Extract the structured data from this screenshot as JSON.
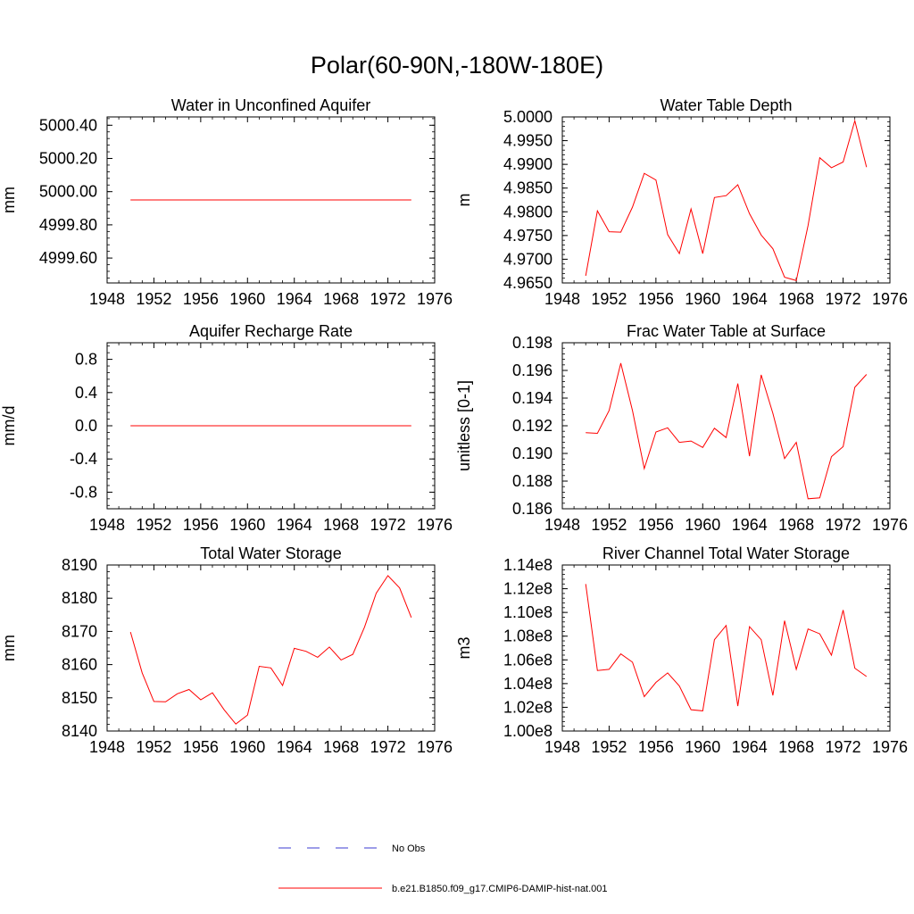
{
  "figure_title": "Polar(60-90N,-180W-180E)",
  "legend": {
    "entries": [
      {
        "label": "No Obs",
        "style": "dashed",
        "color": "#3b3bd1"
      },
      {
        "label": "b.e21.B1850.f09_g17.CMIP6-DAMIP-hist-nat.001",
        "style": "solid",
        "color": "#ff0000"
      }
    ]
  },
  "line_color": "#ff0000",
  "chart_data": [
    {
      "type": "line",
      "title": "Water in Unconfined Aquifer",
      "ylabel": "mm",
      "xlim": [
        1948,
        1976
      ],
      "ylim": [
        4999.45,
        5000.45
      ],
      "xticks": [
        1948,
        1952,
        1956,
        1960,
        1964,
        1968,
        1972,
        1976
      ],
      "xtick_labels": [
        "1948",
        "1952",
        "1956",
        "1960",
        "1964",
        "1968",
        "1972",
        "1976"
      ],
      "yticks": [
        4999.6,
        4999.8,
        5000.0,
        5000.2,
        5000.4
      ],
      "ytick_labels": [
        "4999.60",
        "4999.80",
        "5000.00",
        "5000.20",
        "5000.40"
      ],
      "x": [
        1950,
        1951,
        1952,
        1953,
        1954,
        1955,
        1956,
        1957,
        1958,
        1959,
        1960,
        1961,
        1962,
        1963,
        1964,
        1965,
        1966,
        1967,
        1968,
        1969,
        1970,
        1971,
        1972,
        1973,
        1974
      ],
      "y": [
        4999.95,
        4999.95,
        4999.95,
        4999.95,
        4999.95,
        4999.95,
        4999.95,
        4999.95,
        4999.95,
        4999.95,
        4999.95,
        4999.95,
        4999.95,
        4999.95,
        4999.95,
        4999.95,
        4999.95,
        4999.95,
        4999.95,
        4999.95,
        4999.95,
        4999.95,
        4999.95,
        4999.95,
        4999.95
      ]
    },
    {
      "type": "line",
      "title": "Water Table Depth",
      "ylabel": "m",
      "xlim": [
        1948,
        1976
      ],
      "ylim": [
        4.965,
        5.0
      ],
      "xticks": [
        1948,
        1952,
        1956,
        1960,
        1964,
        1968,
        1972,
        1976
      ],
      "xtick_labels": [
        "1948",
        "1952",
        "1956",
        "1960",
        "1964",
        "1968",
        "1972",
        "1976"
      ],
      "yticks": [
        4.965,
        4.97,
        4.975,
        4.98,
        4.985,
        4.99,
        4.995,
        5.0
      ],
      "ytick_labels": [
        "4.9650",
        "4.9700",
        "4.9750",
        "4.9800",
        "4.9850",
        "4.9900",
        "4.9950",
        "5.0000"
      ],
      "x": [
        1950,
        1951,
        1952,
        1953,
        1954,
        1955,
        1956,
        1957,
        1958,
        1959,
        1960,
        1961,
        1962,
        1963,
        1964,
        1965,
        1966,
        1967,
        1968,
        1969,
        1970,
        1971,
        1972,
        1973,
        1974
      ],
      "y": [
        4.9665,
        4.9802,
        4.9758,
        4.9757,
        4.981,
        4.9881,
        4.9867,
        4.9752,
        4.9712,
        4.9806,
        4.9712,
        4.983,
        4.9834,
        4.9857,
        4.9796,
        4.9751,
        4.9722,
        4.9662,
        4.9655,
        4.9771,
        4.9914,
        4.9893,
        4.9905,
        4.9992,
        4.9894
      ]
    },
    {
      "type": "line",
      "title": "Aquifer Recharge Rate",
      "ylabel": "mm/d",
      "xlim": [
        1948,
        1976
      ],
      "ylim": [
        -1.0,
        1.0
      ],
      "xticks": [
        1948,
        1952,
        1956,
        1960,
        1964,
        1968,
        1972,
        1976
      ],
      "xtick_labels": [
        "1948",
        "1952",
        "1956",
        "1960",
        "1964",
        "1968",
        "1972",
        "1976"
      ],
      "yticks": [
        -0.8,
        -0.4,
        0.0,
        0.4,
        0.8
      ],
      "ytick_labels": [
        "-0.8",
        "-0.4",
        "0.0",
        "0.4",
        "0.8"
      ],
      "x": [
        1950,
        1951,
        1952,
        1953,
        1954,
        1955,
        1956,
        1957,
        1958,
        1959,
        1960,
        1961,
        1962,
        1963,
        1964,
        1965,
        1966,
        1967,
        1968,
        1969,
        1970,
        1971,
        1972,
        1973,
        1974
      ],
      "y": [
        0,
        0,
        0,
        0,
        0,
        0,
        0,
        0,
        0,
        0,
        0,
        0,
        0,
        0,
        0,
        0,
        0,
        0,
        0,
        0,
        0,
        0,
        0,
        0,
        0
      ]
    },
    {
      "type": "line",
      "title": "Frac Water Table at Surface",
      "ylabel": "unitless [0-1]",
      "xlim": [
        1948,
        1976
      ],
      "ylim": [
        0.186,
        0.198
      ],
      "xticks": [
        1948,
        1952,
        1956,
        1960,
        1964,
        1968,
        1972,
        1976
      ],
      "xtick_labels": [
        "1948",
        "1952",
        "1956",
        "1960",
        "1964",
        "1968",
        "1972",
        "1976"
      ],
      "yticks": [
        0.186,
        0.188,
        0.19,
        0.192,
        0.194,
        0.196,
        0.198
      ],
      "ytick_labels": [
        "0.186",
        "0.188",
        "0.190",
        "0.192",
        "0.194",
        "0.196",
        "0.198"
      ],
      "x": [
        1950,
        1951,
        1952,
        1953,
        1954,
        1955,
        1956,
        1957,
        1958,
        1959,
        1960,
        1961,
        1962,
        1963,
        1964,
        1965,
        1966,
        1967,
        1968,
        1969,
        1970,
        1971,
        1972,
        1973,
        1974
      ],
      "y": [
        0.1915,
        0.19145,
        0.1931,
        0.19652,
        0.1931,
        0.1889,
        0.19155,
        0.19185,
        0.1908,
        0.1909,
        0.19043,
        0.19182,
        0.19115,
        0.19505,
        0.1898,
        0.19568,
        0.1929,
        0.18963,
        0.1908,
        0.18672,
        0.18679,
        0.18977,
        0.19049,
        0.19478,
        0.19571
      ]
    },
    {
      "type": "line",
      "title": "Total Water Storage",
      "ylabel": "mm",
      "xlim": [
        1948,
        1976
      ],
      "ylim": [
        8140,
        8190
      ],
      "xticks": [
        1948,
        1952,
        1956,
        1960,
        1964,
        1968,
        1972,
        1976
      ],
      "xtick_labels": [
        "1948",
        "1952",
        "1956",
        "1960",
        "1964",
        "1968",
        "1972",
        "1976"
      ],
      "yticks": [
        8140,
        8150,
        8160,
        8170,
        8180,
        8190
      ],
      "ytick_labels": [
        "8140",
        "8150",
        "8160",
        "8170",
        "8180",
        "8190"
      ],
      "x": [
        1950,
        1951,
        1952,
        1953,
        1954,
        1955,
        1956,
        1957,
        1958,
        1959,
        1960,
        1961,
        1962,
        1963,
        1964,
        1965,
        1966,
        1967,
        1968,
        1969,
        1970,
        1971,
        1972,
        1973,
        1974
      ],
      "y": [
        8169.8,
        8157.5,
        8148.9,
        8148.8,
        8151.2,
        8152.5,
        8149.4,
        8151.5,
        8146.4,
        8142.1,
        8144.8,
        8159.5,
        8159.0,
        8153.7,
        8164.9,
        8164.0,
        8162.2,
        8165.3,
        8161.4,
        8163.1,
        8171.3,
        8181.5,
        8186.8,
        8183.1,
        8174.2
      ]
    },
    {
      "type": "line",
      "title": "River Channel Total Water Storage",
      "ylabel": "m3",
      "xlim": [
        1948,
        1976
      ],
      "ylim": [
        100000000,
        114000000
      ],
      "xticks": [
        1948,
        1952,
        1956,
        1960,
        1964,
        1968,
        1972,
        1976
      ],
      "xtick_labels": [
        "1948",
        "1952",
        "1956",
        "1960",
        "1964",
        "1968",
        "1972",
        "1976"
      ],
      "yticks": [
        100000000,
        102000000,
        104000000,
        106000000,
        108000000,
        110000000,
        112000000,
        114000000
      ],
      "ytick_labels": [
        "1.00e8",
        "1.02e8",
        "1.04e8",
        "1.06e8",
        "1.08e8",
        "1.10e8",
        "1.12e8",
        "1.14e8"
      ],
      "x": [
        1950,
        1951,
        1952,
        1953,
        1954,
        1955,
        1956,
        1957,
        1958,
        1959,
        1960,
        1961,
        1962,
        1963,
        1964,
        1965,
        1966,
        1967,
        1968,
        1969,
        1970,
        1971,
        1972,
        1973,
        1974
      ],
      "y": [
        112400000,
        105100000,
        105200000,
        106500000,
        105800000,
        102900000,
        104100000,
        104900000,
        103800000,
        101800000,
        101700000,
        107700000,
        108900000,
        102100000,
        108800000,
        107700000,
        103000000,
        109300000,
        105200000,
        108600000,
        108200000,
        106400000,
        110200000,
        105300000,
        104600000
      ]
    }
  ]
}
